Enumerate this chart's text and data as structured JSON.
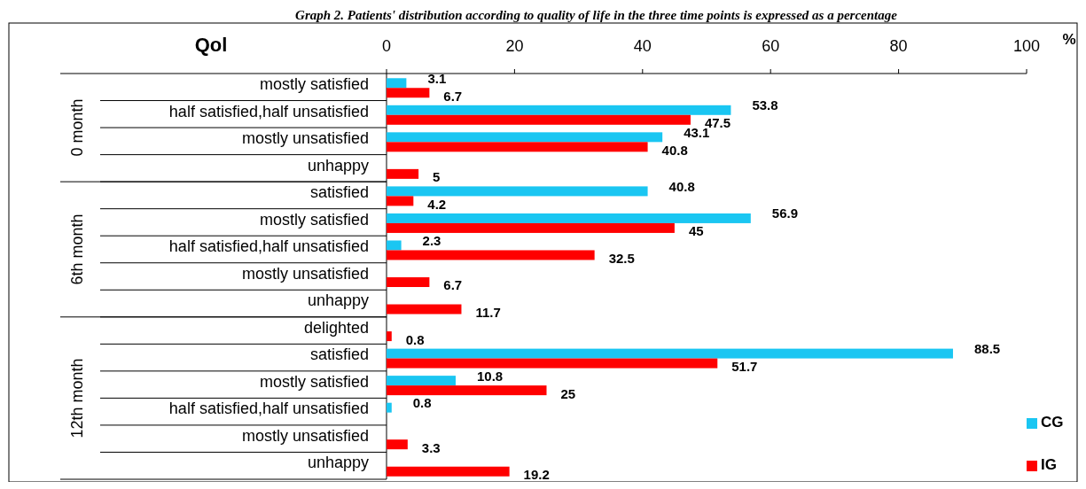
{
  "chart_data": {
    "type": "bar",
    "orientation": "horizontal",
    "title": "Graph 2. Patients' distribution according to quality of life in the three time points is expressed as a percentage",
    "ylabel": "Qol",
    "xlabel": "%",
    "categories": [
      "mostly satisfied",
      "half satisfied,half unsatisfied",
      "mostly unsatisfied",
      "unhappy",
      "satisfied",
      "mostly satisfied",
      "half satisfied,half unsatisfied",
      "mostly unsatisfied",
      "unhappy",
      "delighted",
      "satisfied",
      "mostly satisfied",
      "half satisfied,half unsatisfied",
      "mostly unsatisfied",
      "unhappy"
    ],
    "series": [
      {
        "name": "CG",
        "color": "#1ac6f2",
        "values": [
          3.1,
          53.8,
          43.1,
          null,
          40.8,
          56.9,
          2.3,
          null,
          null,
          null,
          88.5,
          10.8,
          0.8,
          null,
          null
        ]
      },
      {
        "name": "IG",
        "color": "#ff0000",
        "values": [
          6.7,
          47.5,
          40.8,
          5,
          4.2,
          45,
          32.5,
          6.7,
          11.7,
          0.8,
          51.7,
          25,
          null,
          3.3,
          19.2
        ]
      }
    ],
    "xlim": [
      0,
      100
    ],
    "xticks": [
      0,
      20,
      40,
      60,
      80,
      100
    ],
    "data_labels": true,
    "legend": "bottom right",
    "annotations": [
      "0 month",
      "6th month",
      "12th month"
    ]
  }
}
